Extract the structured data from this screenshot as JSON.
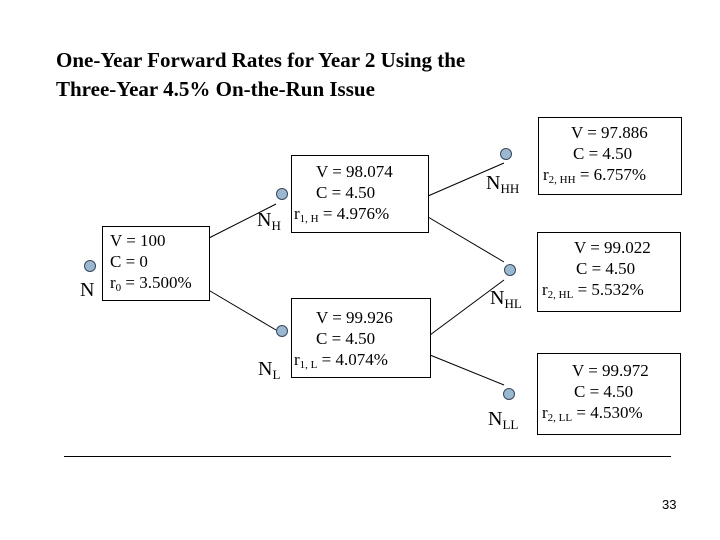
{
  "title": {
    "line1": "One-Year Forward Rates for Year 2 Using the",
    "line2": "Three-Year 4.5% On-the-Run Issue"
  },
  "nodes": {
    "N": {
      "main": "N",
      "sub": "",
      "v": "V = 100",
      "c": "C = 0",
      "r_main": "r",
      "r_sub": "0",
      "r_val": " = 3.500%"
    },
    "NH": {
      "main": "N",
      "sub": "H",
      "v": "V = 98.074",
      "c": "C = 4.50",
      "r_main": "r",
      "r_sub": "1, H",
      "r_val": " = 4.976%"
    },
    "NL": {
      "main": "N",
      "sub": "L",
      "v": "V = 99.926",
      "c": "C = 4.50",
      "r_main": "r",
      "r_sub": "1, L",
      "r_val": " = 4.074%"
    },
    "NHH": {
      "main": "N",
      "sub": "HH",
      "v": "V = 97.886",
      "c": "C = 4.50",
      "r_main": "r",
      "r_sub": "2, HH",
      "r_val": " = 6.757%"
    },
    "NHL": {
      "main": "N",
      "sub": "HL",
      "v": "V = 99.022",
      "c": "C = 4.50",
      "r_main": "r",
      "r_sub": "2, HL",
      "r_val": " = 5.532%"
    },
    "NLL": {
      "main": "N",
      "sub": "LL",
      "v": "V = 99.972",
      "c": "C = 4.50",
      "r_main": "r",
      "r_sub": "2, LL",
      "r_val": " = 4.530%"
    }
  },
  "page_number": "33",
  "colors": {
    "node_fill": "#9ab8cf",
    "node_stroke": "#36475a",
    "line": "#000000"
  }
}
